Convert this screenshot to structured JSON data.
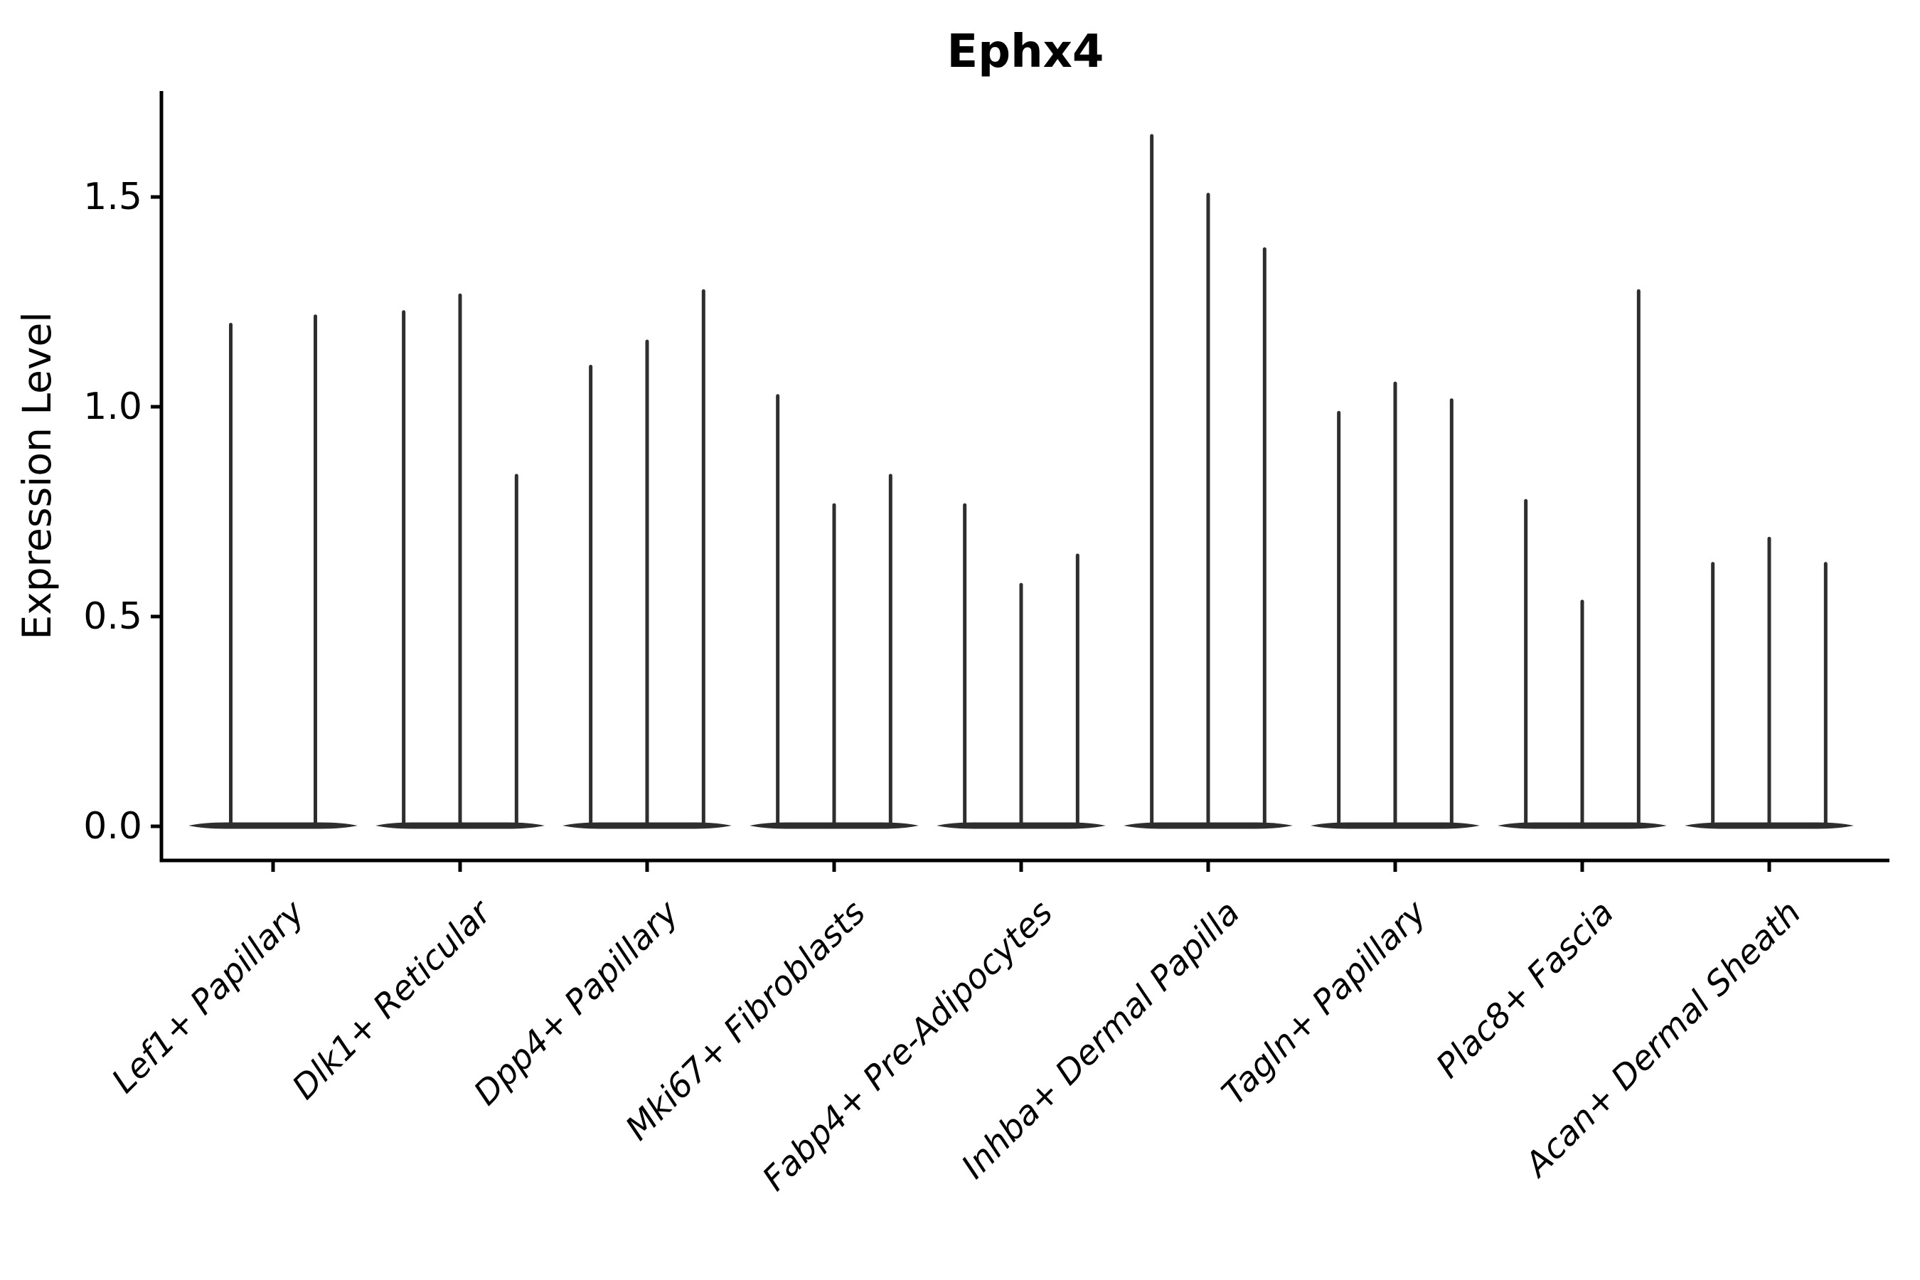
{
  "chart_data": {
    "type": "violin",
    "title": "Ephx4",
    "xlabel": "",
    "ylabel": "Expression Level",
    "ylim": [
      -0.08,
      1.73
    ],
    "yticks": [
      0.0,
      0.5,
      1.0,
      1.5
    ],
    "ytick_labels": [
      "0.0",
      "0.5",
      "1.0",
      "1.5"
    ],
    "grid": false,
    "legend": "none",
    "violin_color": "#2e2e2e",
    "axis_color": "#000000",
    "categories": [
      "Lef1+ Papillary",
      "Dlk1+ Reticular",
      "Dpp4+ Papillary",
      "Mki67+ Fibroblasts",
      "Fabp4+ Pre-Adipocytes",
      "Inhba+ Dermal Papilla",
      "Tagln+ Papillary",
      "Plac8+ Fascia",
      "Acan+ Dermal Sheath"
    ],
    "groups": [
      {
        "category": "Lef1+ Papillary",
        "violin_maxima": [
          1.2,
          1.22
        ]
      },
      {
        "category": "Dlk1+ Reticular",
        "violin_maxima": [
          1.23,
          1.27,
          0.84
        ]
      },
      {
        "category": "Dpp4+ Papillary",
        "violin_maxima": [
          1.1,
          1.16,
          1.28
        ]
      },
      {
        "category": "Mki67+ Fibroblasts",
        "violin_maxima": [
          1.03,
          0.77,
          0.84
        ]
      },
      {
        "category": "Fabp4+ Pre-Adipocytes",
        "violin_maxima": [
          0.77,
          0.58,
          0.65
        ]
      },
      {
        "category": "Inhba+ Dermal Papilla",
        "violin_maxima": [
          1.65,
          1.51,
          1.38
        ]
      },
      {
        "category": "Tagln+ Papillary",
        "violin_maxima": [
          0.99,
          1.06,
          1.02
        ]
      },
      {
        "category": "Plac8+ Fascia",
        "violin_maxima": [
          0.78,
          0.54,
          1.28
        ]
      },
      {
        "category": "Acan+ Dermal Sheath",
        "violin_maxima": [
          0.63,
          0.69,
          0.63
        ]
      }
    ],
    "description": "Violin plot of Ephx4 expression level per fibroblast subtype; violins are extremely narrow (most cells near zero) so each appears as a flat base at 0 with a thin spike to its maximum."
  }
}
